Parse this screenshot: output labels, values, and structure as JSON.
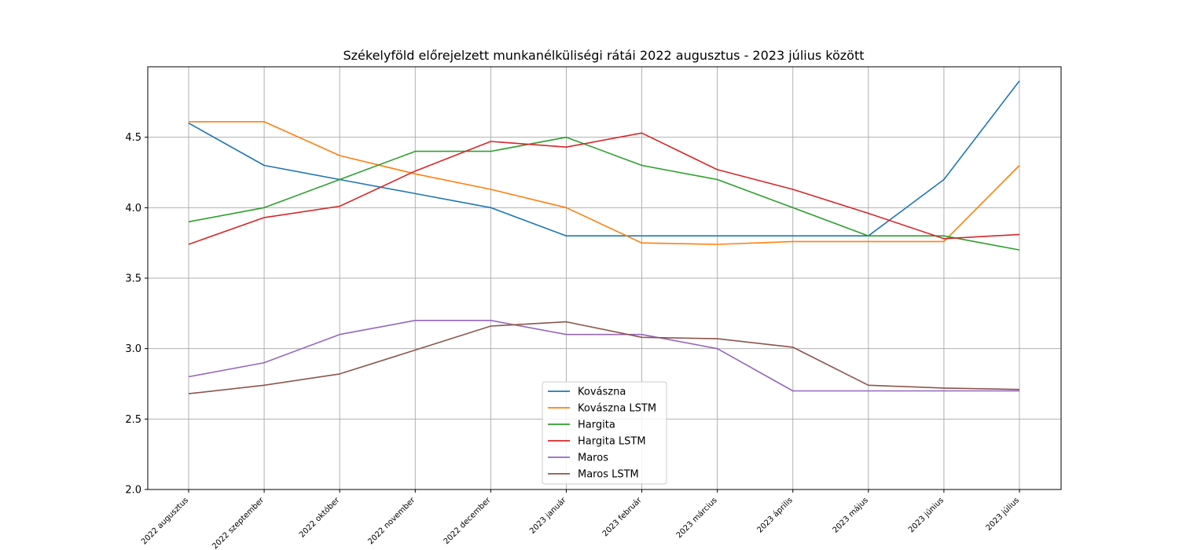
{
  "chart_data": {
    "type": "line",
    "title": "Székelyföld előrejelzett munkanélküliségi rátái 2022 augusztus - 2023 július között",
    "xlabel": "",
    "ylabel": "",
    "categories": [
      "2022 augusztus",
      "2022 szeptember",
      "2022 október",
      "2022 november",
      "2022 december",
      "2023 január",
      "2023 február",
      "2023 március",
      "2023 április",
      "2023 május",
      "2023 június",
      "2023 július"
    ],
    "ylim": [
      2.0,
      5.0
    ],
    "yticks": [
      "2.0",
      "2.5",
      "3.0",
      "3.5",
      "4.0",
      "4.5"
    ],
    "grid": true,
    "legend_position": "lower-center",
    "series": [
      {
        "name": "Kovászna",
        "color": "#1f77b4",
        "values": [
          4.6,
          4.3,
          4.2,
          4.1,
          4.0,
          3.8,
          3.8,
          3.8,
          3.8,
          3.8,
          4.2,
          4.9
        ]
      },
      {
        "name": "Kovászna LSTM",
        "color": "#ff7f0e",
        "values": [
          4.61,
          4.61,
          4.37,
          4.24,
          4.13,
          4.0,
          3.75,
          3.74,
          3.76,
          3.76,
          3.76,
          4.3
        ]
      },
      {
        "name": "Hargita",
        "color": "#2ca02c",
        "values": [
          3.9,
          4.0,
          4.2,
          4.4,
          4.4,
          4.5,
          4.3,
          4.2,
          4.0,
          3.8,
          3.8,
          3.7
        ]
      },
      {
        "name": "Hargita LSTM",
        "color": "#d62728",
        "values": [
          3.74,
          3.93,
          4.01,
          4.26,
          4.47,
          4.43,
          4.53,
          4.27,
          4.13,
          3.96,
          3.78,
          3.81
        ]
      },
      {
        "name": "Maros",
        "color": "#9467bd",
        "values": [
          2.8,
          2.9,
          3.1,
          3.2,
          3.2,
          3.1,
          3.1,
          3.0,
          2.7,
          2.7,
          2.7,
          2.7
        ]
      },
      {
        "name": "Maros LSTM",
        "color": "#8c564b",
        "values": [
          2.68,
          2.74,
          2.82,
          2.99,
          3.16,
          3.19,
          3.08,
          3.07,
          3.01,
          2.74,
          2.72,
          2.71
        ]
      }
    ]
  }
}
